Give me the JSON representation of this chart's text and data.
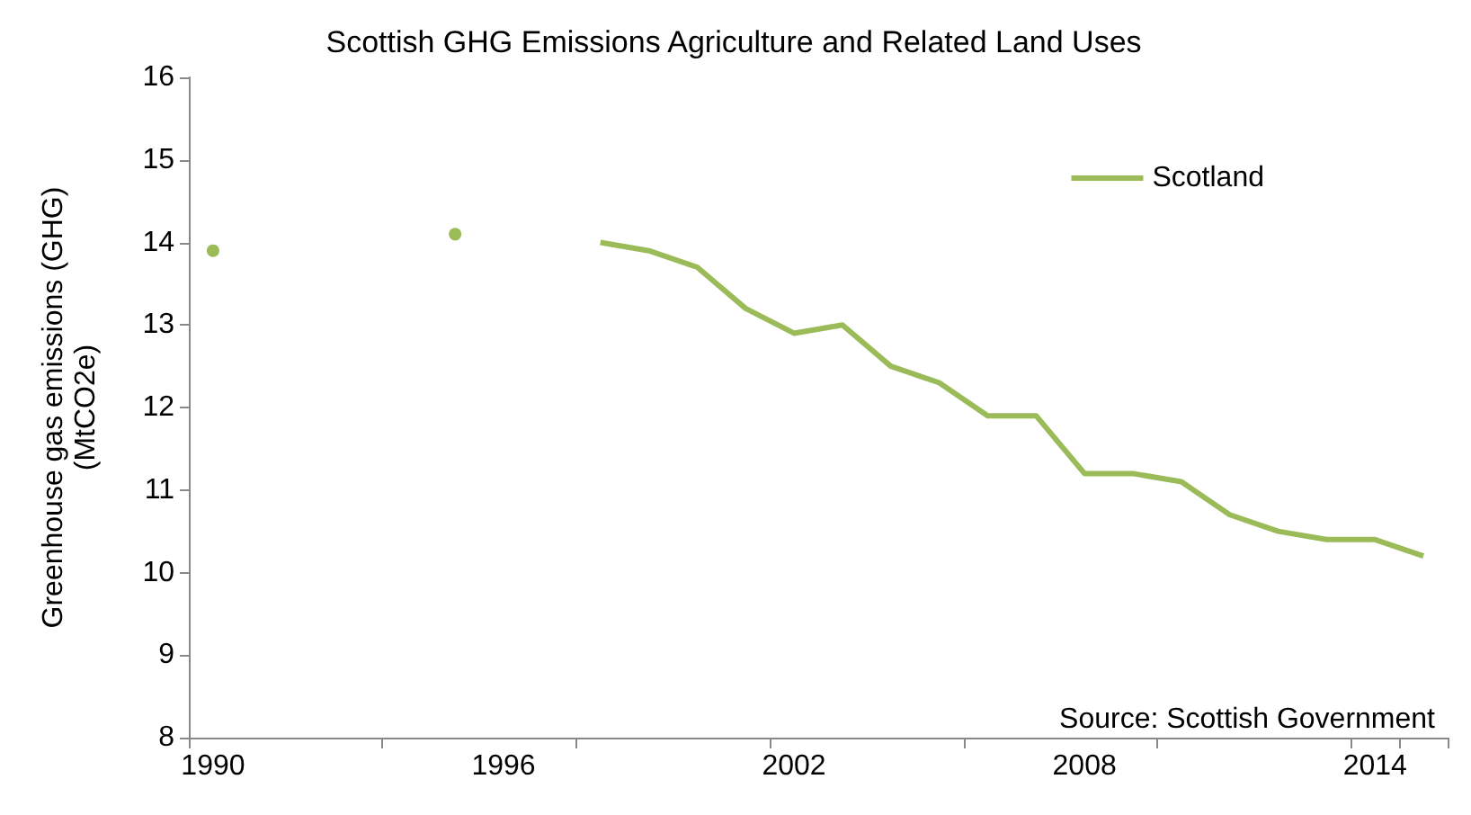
{
  "chart_data": {
    "type": "line",
    "title": "Scottish GHG Emissions Agriculture and Related Land Uses",
    "ylabel": "Greenhouse gas emissions (GHG)\n(MtCO2e)",
    "categories": [
      "1990",
      null,
      null,
      null,
      null,
      null,
      "1996",
      null,
      null,
      null,
      null,
      null,
      "2002",
      null,
      null,
      null,
      null,
      null,
      "2008",
      null,
      null,
      null,
      null,
      null,
      "2014",
      null
    ],
    "series": [
      {
        "name": "Scotland",
        "color": "#9bbb59",
        "values": [
          13.9,
          null,
          null,
          null,
          null,
          14.1,
          null,
          null,
          14.0,
          13.9,
          13.7,
          13.2,
          12.9,
          13.0,
          12.5,
          12.3,
          11.9,
          11.9,
          11.2,
          11.2,
          11.1,
          10.7,
          10.5,
          10.4,
          10.4,
          10.2
        ]
      }
    ],
    "ylim": [
      8,
      16
    ],
    "yticks": [
      8,
      9,
      10,
      11,
      12,
      13,
      14,
      15,
      16
    ],
    "grid": false,
    "legend": "top right",
    "annotations": [
      "Source: Scottish Government"
    ]
  }
}
